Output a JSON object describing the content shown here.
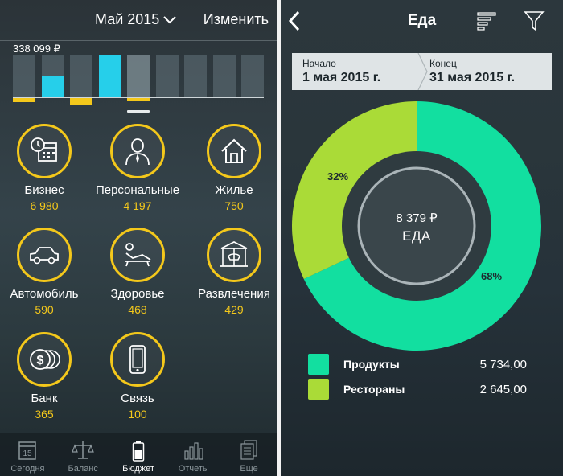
{
  "colors": {
    "accent_yellow": "#f4c81b",
    "accent_cyan": "#26cfea",
    "food_green": "#12dfa0",
    "food_lime": "#aadb37"
  },
  "left": {
    "header": {
      "month": "Май 2015",
      "edit": "Изменить"
    },
    "total": "338 099 ₽",
    "chart_data": {
      "type": "bar",
      "categories": [
        "1",
        "2",
        "3",
        "4",
        "5",
        "6",
        "7",
        "8",
        "9"
      ],
      "series": [
        {
          "values": [
            0,
            0.5,
            0,
            1,
            0,
            0,
            0,
            0,
            0
          ]
        },
        {
          "values": [
            0.13,
            0,
            0.2,
            0,
            0.08,
            0,
            0,
            0,
            0
          ]
        }
      ],
      "selected_index": 4
    },
    "categories": [
      {
        "name": "Бизнес",
        "value": "6 980",
        "icon": "calendar-clock-icon"
      },
      {
        "name": "Персональные",
        "value": "4 197",
        "icon": "person-icon"
      },
      {
        "name": "Жилье",
        "value": "750",
        "icon": "house-icon"
      },
      {
        "name": "Автомобиль",
        "value": "590",
        "icon": "car-icon"
      },
      {
        "name": "Здоровье",
        "value": "468",
        "icon": "lounger-icon"
      },
      {
        "name": "Развлечения",
        "value": "429",
        "icon": "carousel-icon"
      },
      {
        "name": "Банк",
        "value": "365",
        "icon": "coins-icon"
      },
      {
        "name": "Связь",
        "value": "100",
        "icon": "phone-icon"
      }
    ],
    "tabs": [
      {
        "label": "Сегодня",
        "icon": "calendar-icon",
        "day": "15"
      },
      {
        "label": "Баланс",
        "icon": "scales-icon"
      },
      {
        "label": "Бюджет",
        "icon": "battery-icon"
      },
      {
        "label": "Отчеты",
        "icon": "bars-chart-icon"
      },
      {
        "label": "Еще",
        "icon": "documents-icon"
      }
    ],
    "active_tab": 2
  },
  "right": {
    "title": "Еда",
    "start": {
      "label": "Начало",
      "value": "1 мая 2015 г."
    },
    "end": {
      "label": "Конец",
      "value": "31 мая 2015 г."
    },
    "center": {
      "value": "8 379 ₽",
      "label": "ЕДА"
    },
    "chart_data": {
      "type": "pie",
      "categories": [
        "Продукты",
        "Рестораны"
      ],
      "values": [
        68,
        32
      ],
      "labels": [
        "68%",
        "32%"
      ]
    },
    "legend": [
      {
        "name": "Продукты",
        "value": "5 734,00",
        "color": "#12dfa0"
      },
      {
        "name": "Рестораны",
        "value": "2 645,00",
        "color": "#aadb37"
      }
    ]
  }
}
